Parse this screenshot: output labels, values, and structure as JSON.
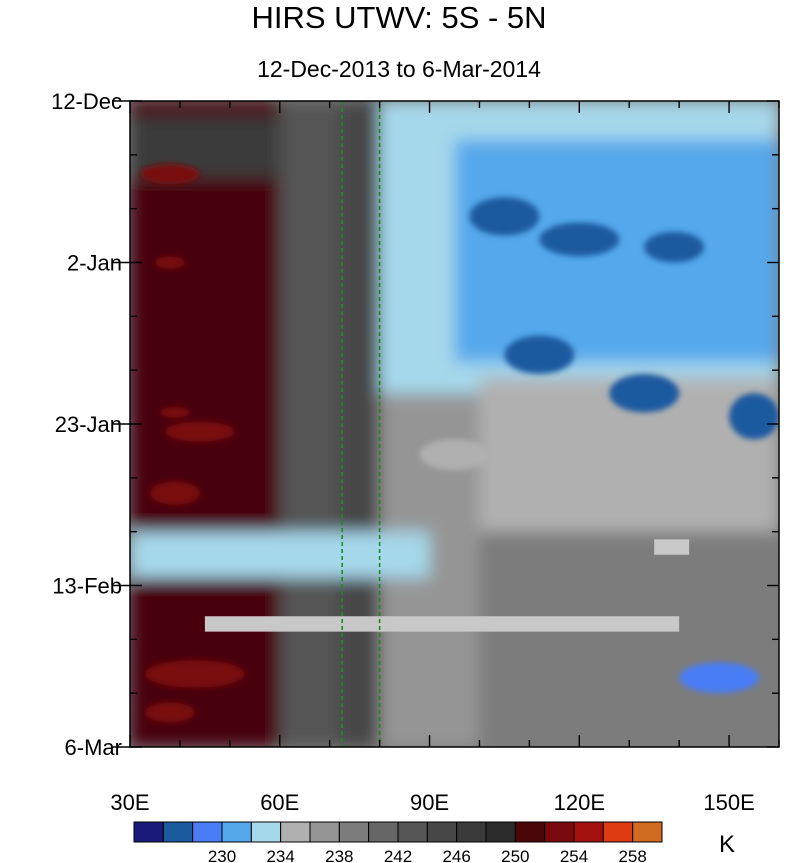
{
  "chart_data": {
    "type": "heatmap",
    "title": "HIRS UTWV: 5S - 5N",
    "subtitle": "12-Dec-2013 to 6-Mar-2014",
    "x_ticks": [
      {
        "value": 30,
        "label": "30E"
      },
      {
        "value": 60,
        "label": "60E"
      },
      {
        "value": 90,
        "label": "90E"
      },
      {
        "value": 120,
        "label": "120E"
      },
      {
        "value": 150,
        "label": "150E"
      }
    ],
    "xlim": [
      30,
      160
    ],
    "y_ticks": [
      {
        "value": 0,
        "label": "12-Dec"
      },
      {
        "value": 21,
        "label": "2-Jan"
      },
      {
        "value": 42,
        "label": "23-Jan"
      },
      {
        "value": 63,
        "label": "13-Feb"
      },
      {
        "value": 84,
        "label": "6-Mar"
      }
    ],
    "ylim": [
      0,
      84
    ],
    "reference_lines_longitude": [
      72.5,
      80
    ],
    "colorbar": {
      "unit": "K",
      "colors": [
        "#1a1a7a",
        "#1c5aa0",
        "#4a7df5",
        "#55a8ec",
        "#a6d8eb",
        "#b0b0b0",
        "#959595",
        "#7c7c7c",
        "#666666",
        "#555555",
        "#474747",
        "#3a3a3a",
        "#2c2c2c",
        "#4a0608",
        "#7a0a0c",
        "#a3100e",
        "#e03a12",
        "#d26a22"
      ],
      "tick_labels": [
        "230",
        "234",
        "238",
        "242",
        "246",
        "250",
        "254",
        "258"
      ]
    },
    "zones": [
      {
        "x": [
          30,
          60
        ],
        "y": [
          0,
          84
        ],
        "level": 13
      },
      {
        "x": [
          60,
          72
        ],
        "y": [
          0,
          84
        ],
        "level": 9
      },
      {
        "x": [
          72,
          80
        ],
        "y": [
          0,
          84
        ],
        "level": 10
      },
      {
        "x": [
          80,
          100
        ],
        "y": [
          0,
          84
        ],
        "level": 6
      },
      {
        "x": [
          100,
          160
        ],
        "y": [
          0,
          84
        ],
        "level": 7
      },
      {
        "x": [
          80,
          160
        ],
        "y": [
          0,
          38
        ],
        "level": 4
      },
      {
        "x": [
          95,
          160
        ],
        "y": [
          5,
          34
        ],
        "level": 3
      },
      {
        "x": [
          100,
          160
        ],
        "y": [
          36,
          56
        ],
        "level": 5
      },
      {
        "x": [
          30,
          90
        ],
        "y": [
          56,
          62
        ],
        "level": 4
      },
      {
        "x": [
          30,
          60
        ],
        "y": [
          2,
          10
        ],
        "level": 11
      }
    ],
    "features": [
      {
        "x": 38,
        "y": 9.5,
        "rx": 6,
        "ry": 1.3,
        "level": 14
      },
      {
        "x": 38,
        "y": 21,
        "rx": 3,
        "ry": 0.8,
        "level": 14
      },
      {
        "x": 39,
        "y": 40.5,
        "rx": 3,
        "ry": 0.7,
        "level": 14
      },
      {
        "x": 44,
        "y": 43,
        "rx": 7,
        "ry": 1.3,
        "level": 14
      },
      {
        "x": 39,
        "y": 51,
        "rx": 5,
        "ry": 1.5,
        "level": 14
      },
      {
        "x": 43,
        "y": 74.5,
        "rx": 10,
        "ry": 1.8,
        "level": 14
      },
      {
        "x": 38,
        "y": 79.5,
        "rx": 5,
        "ry": 1.3,
        "level": 14
      },
      {
        "x": 105,
        "y": 15,
        "rx": 7,
        "ry": 2.5,
        "level": 1
      },
      {
        "x": 120,
        "y": 18,
        "rx": 8,
        "ry": 2.2,
        "level": 1
      },
      {
        "x": 139,
        "y": 19,
        "rx": 6,
        "ry": 2,
        "level": 1
      },
      {
        "x": 112,
        "y": 33,
        "rx": 7,
        "ry": 2.5,
        "level": 1
      },
      {
        "x": 133,
        "y": 38,
        "rx": 7,
        "ry": 2.5,
        "level": 1
      },
      {
        "x": 155,
        "y": 41,
        "rx": 5,
        "ry": 3,
        "level": 1
      },
      {
        "x": 148,
        "y": 75,
        "rx": 8,
        "ry": 2,
        "level": 2
      },
      {
        "x": 95,
        "y": 46,
        "rx": 7,
        "ry": 2,
        "level": 5
      }
    ],
    "missing_bands": [
      {
        "x": [
          45,
          140
        ],
        "y": [
          67,
          69
        ]
      },
      {
        "x": [
          135,
          142
        ],
        "y": [
          57,
          59
        ]
      }
    ]
  },
  "axes": {
    "x_labels": [
      "30E",
      "60E",
      "90E",
      "120E",
      "150E"
    ],
    "y_labels": [
      "12-Dec",
      "2-Jan",
      "23-Jan",
      "13-Feb",
      "6-Mar"
    ]
  }
}
